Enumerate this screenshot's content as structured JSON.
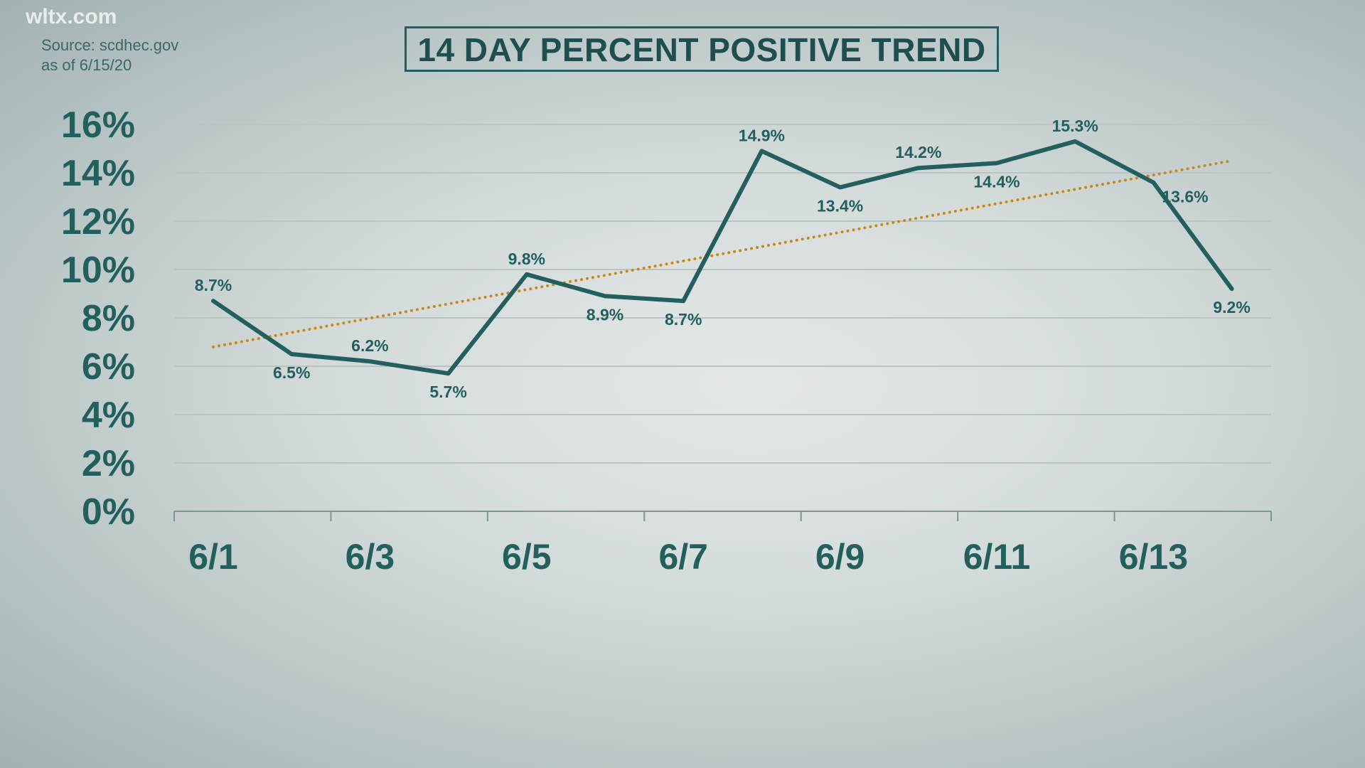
{
  "source": {
    "line1": "Source: scdhec.gov",
    "line2": "as of 6/15/20"
  },
  "watermark": "wltx.com",
  "chart_data": {
    "type": "line",
    "title": "14 DAY PERCENT POSITIVE TREND",
    "x": [
      "6/1",
      "6/2",
      "6/3",
      "6/4",
      "6/5",
      "6/6",
      "6/7",
      "6/8",
      "6/9",
      "6/10",
      "6/11",
      "6/12",
      "6/13",
      "6/14"
    ],
    "series": [
      {
        "name": "Percent positive",
        "values": [
          8.7,
          6.5,
          6.2,
          5.7,
          9.8,
          8.9,
          8.7,
          14.9,
          13.4,
          14.2,
          14.4,
          15.3,
          13.6,
          9.2
        ],
        "color": "#235f5c"
      }
    ],
    "data_labels": [
      "8.7%",
      "6.5%",
      "6.2%",
      "5.7%",
      "9.8%",
      "8.9%",
      "8.7%",
      "14.9%",
      "13.4%",
      "14.2%",
      "14.4%",
      "15.3%",
      "13.6%",
      "9.2%"
    ],
    "trendline": {
      "type": "linear",
      "start": 6.8,
      "end": 14.5,
      "color": "#c98a1a",
      "style": "dotted"
    },
    "x_tick_labels": [
      "6/1",
      "6/3",
      "6/5",
      "6/7",
      "6/9",
      "6/11",
      "6/13"
    ],
    "y_tick_labels": [
      "0%",
      "2%",
      "4%",
      "6%",
      "8%",
      "10%",
      "12%",
      "14%",
      "16%"
    ],
    "ylim": [
      0,
      16
    ],
    "grid": true,
    "xlabel": "",
    "ylabel": ""
  }
}
